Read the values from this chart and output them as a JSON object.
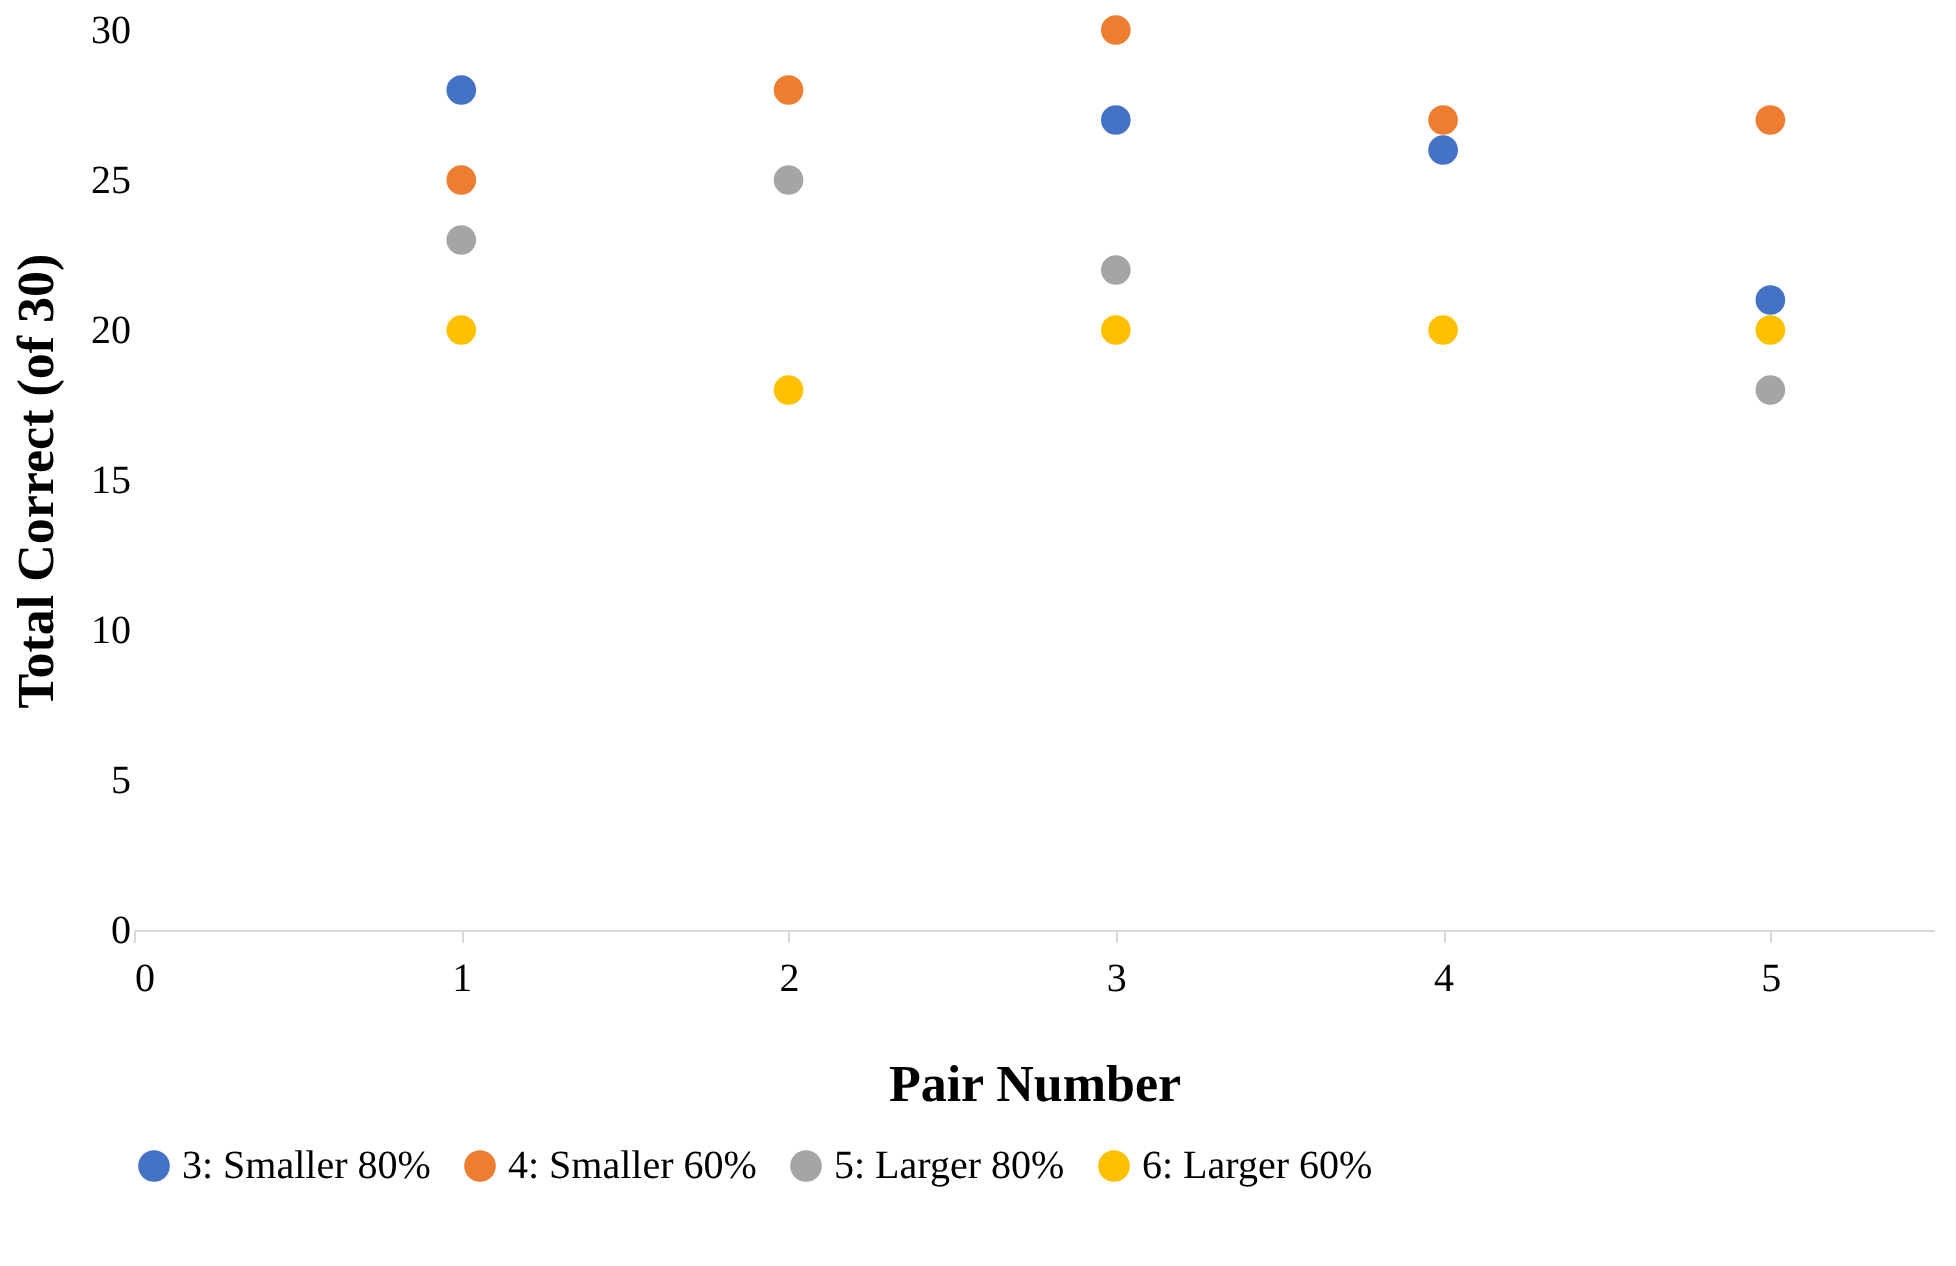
{
  "chart_data": {
    "type": "scatter",
    "xlabel": "Pair Number",
    "ylabel": "Total Correct (of 30)",
    "x": [
      1,
      2,
      3,
      4,
      5
    ],
    "series": [
      {
        "name": "3: Smaller 80%",
        "color": "#4472c4",
        "values": [
          28,
          null,
          27,
          26,
          21
        ]
      },
      {
        "name": "4: Smaller 60%",
        "color": "#ed7d31",
        "values": [
          25,
          28,
          30,
          27,
          27
        ]
      },
      {
        "name": "5: Larger 80%",
        "color": "#a5a5a5",
        "values": [
          23,
          25,
          22,
          null,
          18
        ]
      },
      {
        "name": "6: Larger 60%",
        "color": "#ffc000",
        "values": [
          20,
          18,
          20,
          20,
          20
        ]
      }
    ],
    "xlim": [
      0,
      5.5
    ],
    "xticks": [
      0,
      1,
      2,
      3,
      4,
      5
    ],
    "ylim": [
      0,
      30
    ],
    "yticks": [
      0,
      5,
      10,
      15,
      20,
      25,
      30
    ],
    "grid": false,
    "legend": "bottom",
    "marker": "circle"
  }
}
